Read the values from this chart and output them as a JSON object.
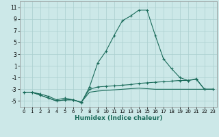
{
  "xlabel": "Humidex (Indice chaleur)",
  "bg_color": "#cce8e8",
  "line_color": "#1a6b5a",
  "grid_color": "#aacfcf",
  "x_values": [
    0,
    1,
    2,
    3,
    4,
    5,
    6,
    7,
    8,
    9,
    10,
    11,
    12,
    13,
    14,
    15,
    16,
    17,
    18,
    19,
    20,
    21,
    22,
    23
  ],
  "series1": [
    -3.5,
    -3.5,
    -3.8,
    -4.2,
    -4.8,
    -4.5,
    -4.8,
    -5.3,
    -2.6,
    1.5,
    3.5,
    6.2,
    8.7,
    9.5,
    10.5,
    10.5,
    6.2,
    2.2,
    0.5,
    -1.0,
    -1.5,
    -1.2,
    -3.0,
    -3.0
  ],
  "series2": [
    -3.5,
    -3.5,
    -4.0,
    -4.5,
    -5.0,
    -4.8,
    -4.8,
    -5.2,
    -3.0,
    -2.6,
    -2.5,
    -2.4,
    -2.3,
    -2.2,
    -2.0,
    -1.9,
    -1.8,
    -1.7,
    -1.6,
    -1.5,
    -1.5,
    -1.3,
    -3.0,
    -3.0
  ],
  "series3": [
    -3.5,
    -3.5,
    -4.0,
    -4.5,
    -5.0,
    -4.8,
    -4.8,
    -5.2,
    -3.5,
    -3.3,
    -3.2,
    -3.1,
    -3.0,
    -2.9,
    -2.8,
    -2.9,
    -3.0,
    -3.0,
    -3.0,
    -3.0,
    -3.0,
    -3.0,
    -3.0,
    -3.0
  ],
  "ylim": [
    -6,
    12
  ],
  "xlim": [
    -0.5,
    23.5
  ],
  "yticks": [
    -5,
    -3,
    -1,
    1,
    3,
    5,
    7,
    9,
    11
  ],
  "xticks": [
    0,
    1,
    2,
    3,
    4,
    5,
    6,
    7,
    8,
    9,
    10,
    11,
    12,
    13,
    14,
    15,
    16,
    17,
    18,
    19,
    20,
    21,
    22,
    23
  ],
  "marker": "+"
}
